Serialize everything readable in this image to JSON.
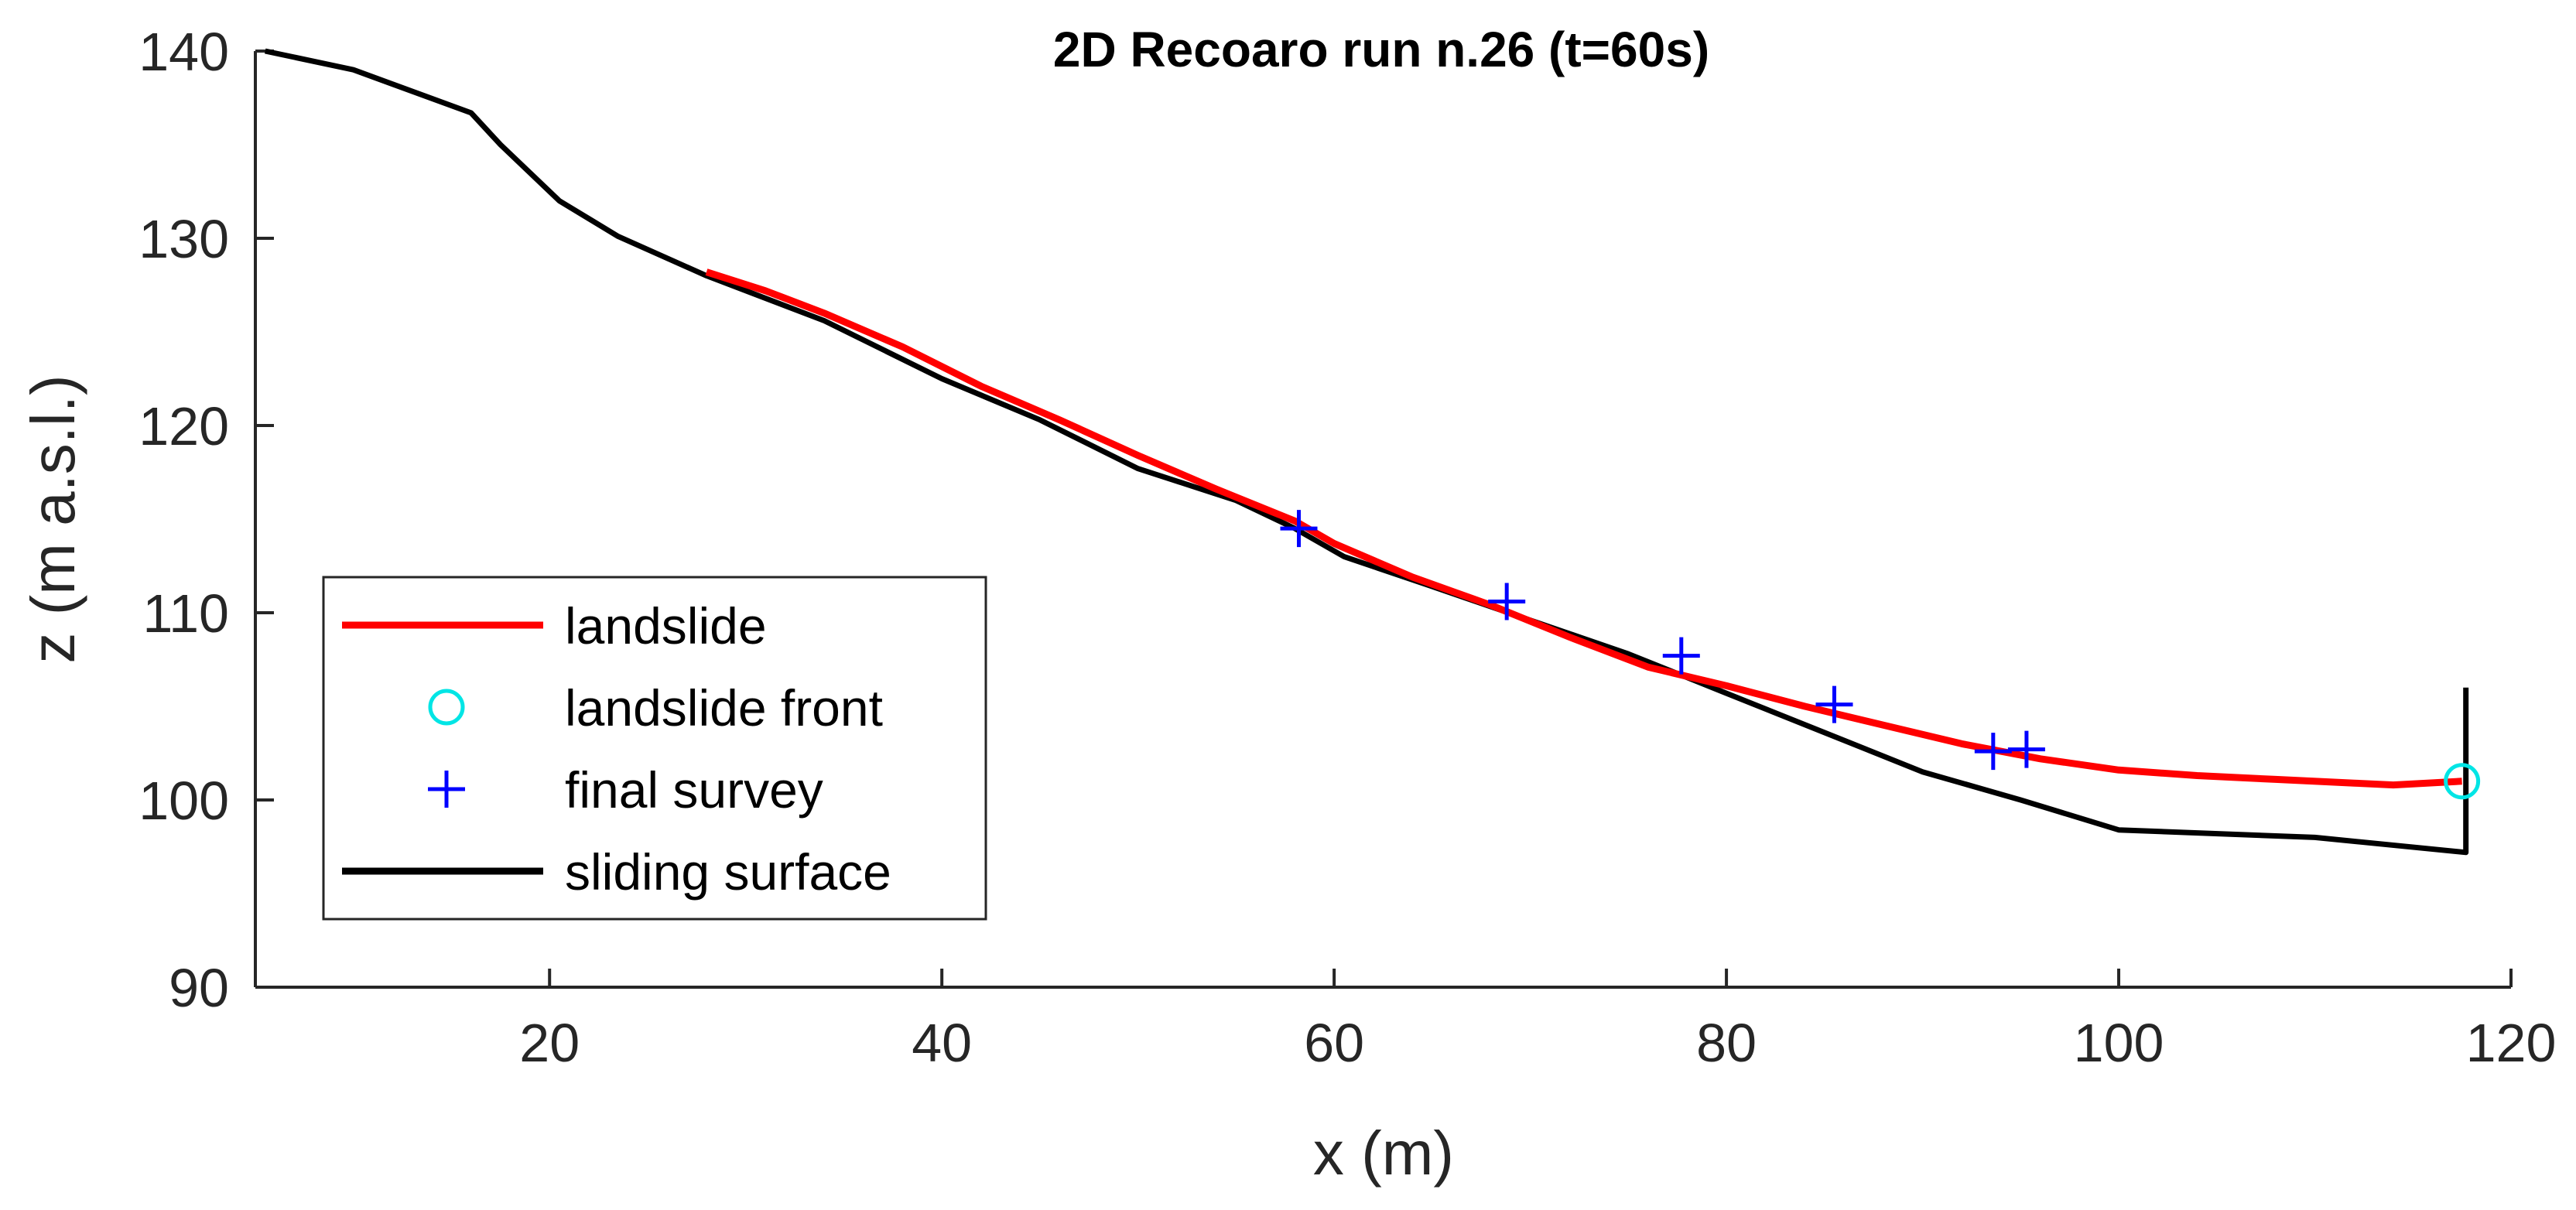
{
  "chart_data": {
    "type": "line",
    "title": "2D Recoaro run n.26 (t=60s)",
    "xlabel": "x (m)",
    "ylabel": "z (m a.s.l.)",
    "xlim": [
      5,
      120
    ],
    "ylim": [
      90,
      140
    ],
    "xticks": [
      20,
      40,
      60,
      80,
      100,
      120
    ],
    "yticks": [
      90,
      100,
      110,
      120,
      130,
      140
    ],
    "grid": false,
    "legend_position": "bottom-left",
    "series": [
      {
        "name": "landslide",
        "kind": "line",
        "color": "#ff0000",
        "x": [
          28,
          31,
          34,
          38,
          42,
          46,
          50,
          54,
          58,
          60,
          64,
          68,
          72,
          76,
          80,
          84,
          88,
          92,
          96,
          100,
          104,
          108,
          112,
          114,
          117.5
        ],
        "y": [
          128.2,
          127.2,
          126.0,
          124.2,
          122.1,
          120.3,
          118.4,
          116.6,
          114.9,
          113.7,
          111.9,
          110.4,
          108.7,
          107.1,
          106.1,
          105.0,
          104.0,
          103.0,
          102.2,
          101.6,
          101.3,
          101.1,
          100.9,
          100.8,
          101.0
        ]
      },
      {
        "name": "landslide front",
        "kind": "marker",
        "marker": "circle",
        "color": "#00e5e5",
        "x": [
          117.5
        ],
        "y": [
          101.0
        ]
      },
      {
        "name": "final survey",
        "kind": "marker",
        "marker": "plus",
        "color": "#0000ff",
        "x": [
          58.2,
          68.8,
          77.7,
          85.5,
          93.6,
          95.3
        ],
        "y": [
          114.5,
          110.6,
          107.7,
          105.1,
          102.6,
          102.7
        ]
      },
      {
        "name": "sliding surface",
        "kind": "line",
        "color": "#000000",
        "x": [
          5.5,
          10,
          16,
          17.5,
          20.5,
          23.5,
          28,
          34,
          40,
          45,
          50,
          55,
          58,
          60.5,
          65,
          70,
          75,
          80,
          85,
          90,
          95,
          100,
          110,
          117.7,
          117.7,
          117.7
        ],
        "y": [
          140,
          139,
          136.7,
          135,
          132,
          130.1,
          128,
          125.6,
          122.5,
          120.3,
          117.7,
          116.0,
          114.5,
          113.0,
          111.4,
          109.6,
          107.8,
          105.7,
          103.6,
          101.5,
          100.0,
          98.4,
          98.0,
          97.2,
          97.2,
          106.0
        ]
      }
    ]
  }
}
